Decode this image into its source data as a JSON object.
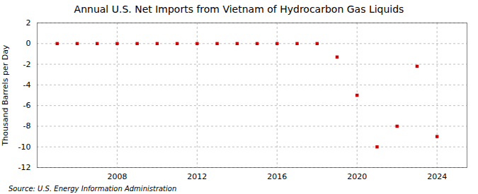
{
  "chart_data": {
    "type": "scatter",
    "title": "Annual U.S. Net Imports from Vietnam of Hydrocarbon Gas Liquids",
    "ylabel": "Thousand Barrels per Day",
    "source": "Source: U.S. Energy Information Administration",
    "x": [
      2005,
      2006,
      2007,
      2008,
      2009,
      2010,
      2011,
      2012,
      2013,
      2014,
      2015,
      2016,
      2017,
      2018,
      2019,
      2020,
      2021,
      2022,
      2023,
      2024
    ],
    "values": [
      0,
      0,
      0,
      0,
      0,
      0,
      0,
      0,
      0,
      0,
      0,
      0,
      0,
      0,
      -1.3,
      -5.0,
      -10.0,
      -8.0,
      -2.2,
      -9.0
    ],
    "color": "#cc0000",
    "marker": "square",
    "ylim": [
      -12,
      2
    ],
    "yticks": [
      2,
      0,
      -2,
      -4,
      -6,
      -8,
      -10,
      -12
    ],
    "xlim": [
      2004,
      2025.5
    ],
    "xticks": [
      2008,
      2012,
      2016,
      2020,
      2024
    ],
    "grid": true
  }
}
